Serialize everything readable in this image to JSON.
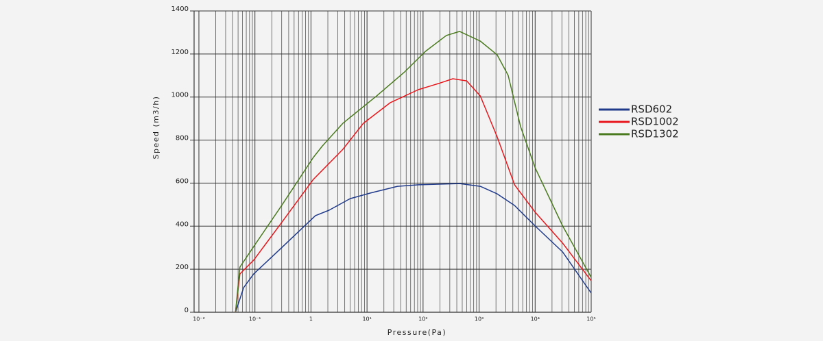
{
  "chart_data": {
    "type": "line",
    "x_label": "Pressure(Pa)",
    "y_label": "Speed (m3/h)",
    "xscale": "log",
    "grid": true,
    "legend": "right",
    "xlim": [
      0.01,
      100000
    ],
    "ylim": [
      0,
      1400
    ],
    "xticks": [
      {
        "value": 0.01,
        "label": "10⁻²"
      },
      {
        "value": 0.1,
        "label": "10⁻¹"
      },
      1,
      {
        "value": 10,
        "label": "10¹"
      },
      {
        "value": 100,
        "label": "10²"
      },
      {
        "value": 1000,
        "label": "10³"
      },
      {
        "value": 10000,
        "label": "10⁴"
      },
      {
        "value": 100000,
        "label": "10⁵"
      }
    ],
    "yticks": [
      0,
      200,
      400,
      600,
      800,
      1000,
      1200,
      1400
    ],
    "series": [
      {
        "name": "RSD602",
        "color": "#1f3a8a",
        "x": [
          0.045,
          0.063,
          0.095,
          0.3,
          1.2,
          2.1,
          5,
          11.5,
          35,
          83,
          190,
          450,
          1050,
          2100,
          4300,
          10000,
          31000,
          100000
        ],
        "values": [
          0,
          115,
          178,
          300,
          449,
          474,
          528,
          554,
          585,
          592,
          595,
          598,
          585,
          550,
          496,
          401,
          280,
          89
        ]
      },
      {
        "name": "RSD1002",
        "color": "#e8161b",
        "x": [
          0.045,
          0.054,
          0.095,
          0.3,
          1.1,
          3.7,
          8.6,
          26,
          82,
          190,
          340,
          600,
          1050,
          2100,
          4300,
          10000,
          31000,
          100000
        ],
        "values": [
          0,
          178,
          242,
          417,
          617,
          757,
          878,
          974,
          1034,
          1063,
          1085,
          1075,
          1005,
          815,
          592,
          465,
          321,
          146
        ]
      },
      {
        "name": "RSD1302",
        "color": "#4a7a1e",
        "x": [
          0.045,
          0.054,
          0.095,
          0.3,
          1.1,
          1.6,
          3.7,
          15,
          47,
          110,
          260,
          450,
          1050,
          2100,
          3300,
          5500,
          10000,
          31000,
          100000
        ],
        "values": [
          0,
          210,
          305,
          496,
          719,
          773,
          878,
          1006,
          1117,
          1212,
          1286,
          1305,
          1260,
          1196,
          1101,
          862,
          671,
          401,
          162
        ]
      }
    ]
  }
}
